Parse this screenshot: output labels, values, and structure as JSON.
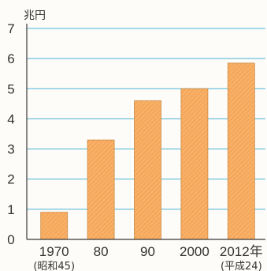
{
  "chart_data": {
    "type": "bar",
    "title": "",
    "ylabel": "兆円",
    "xlabel": "",
    "categories": [
      "1970",
      "80",
      "90",
      "2000",
      "2012年"
    ],
    "category_sublabels": [
      "(昭和45)",
      "",
      "",
      "",
      "(平成24)"
    ],
    "values": [
      0.9,
      3.3,
      4.6,
      5.0,
      5.85
    ],
    "ylim": [
      0,
      7
    ],
    "yticks": [
      "0",
      "1",
      "2",
      "3",
      "4",
      "5",
      "6",
      "7"
    ],
    "grid": true,
    "bar_color": "#f6a85a",
    "grid_color": "#4ab3d8"
  }
}
